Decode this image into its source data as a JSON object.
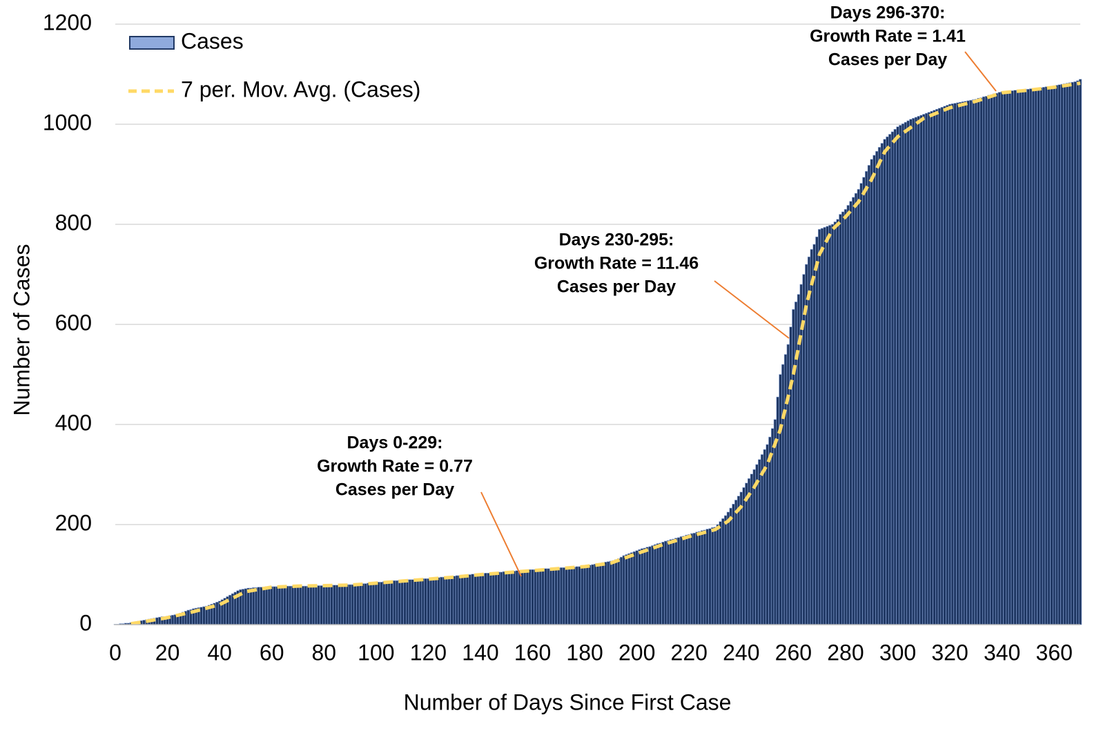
{
  "chart_data": {
    "type": "bar",
    "xlabel": "Number of Days Since First Case",
    "ylabel": "Number of Cases",
    "xlim": [
      0,
      370
    ],
    "xticks": [
      0,
      20,
      40,
      60,
      80,
      100,
      120,
      140,
      160,
      180,
      200,
      220,
      240,
      260,
      280,
      300,
      320,
      340,
      360
    ],
    "ylim": [
      0,
      1200
    ],
    "yticks": [
      0,
      200,
      400,
      600,
      800,
      1000,
      1200
    ],
    "grid": true,
    "legend": "upper left",
    "series": [
      {
        "name": "Cases",
        "type": "bar",
        "color": "#203864",
        "edgecolor": "#8faadc",
        "values": [
          1,
          1,
          2,
          2,
          3,
          3,
          4,
          5,
          6,
          7,
          8,
          9,
          10,
          11,
          12,
          13,
          14,
          15,
          16,
          16,
          17,
          18,
          19,
          20,
          21,
          23,
          25,
          27,
          29,
          30,
          32,
          33,
          34,
          35,
          36,
          37,
          39,
          41,
          43,
          45,
          47,
          50,
          53,
          56,
          59,
          62,
          65,
          68,
          70,
          71,
          72,
          73,
          73,
          74,
          74,
          75,
          75,
          75,
          76,
          76,
          76,
          76,
          76,
          76,
          76,
          77,
          77,
          77,
          77,
          77,
          77,
          77,
          77,
          77,
          77,
          78,
          78,
          78,
          78,
          78,
          78,
          78,
          78,
          79,
          79,
          79,
          79,
          79,
          80,
          80,
          80,
          80,
          81,
          81,
          81,
          82,
          82,
          83,
          83,
          84,
          84,
          85,
          85,
          86,
          86,
          87,
          87,
          88,
          88,
          89,
          89,
          89,
          90,
          90,
          90,
          91,
          91,
          91,
          92,
          92,
          92,
          93,
          93,
          94,
          94,
          95,
          95,
          96,
          96,
          97,
          97,
          98,
          98,
          99,
          99,
          100,
          100,
          101,
          101,
          102,
          102,
          102,
          103,
          103,
          104,
          104,
          104,
          105,
          105,
          106,
          106,
          106,
          107,
          107,
          108,
          108,
          108,
          109,
          109,
          110,
          110,
          110,
          111,
          111,
          111,
          112,
          112,
          112,
          113,
          113,
          113,
          114,
          114,
          114,
          115,
          115,
          115,
          116,
          116,
          117,
          117,
          118,
          119,
          120,
          121,
          122,
          123,
          124,
          125,
          126,
          127,
          128,
          130,
          132,
          135,
          138,
          140,
          142,
          144,
          146,
          148,
          150,
          152,
          153,
          155,
          156,
          158,
          160,
          162,
          163,
          165,
          167,
          168,
          170,
          171,
          173,
          174,
          176,
          177,
          179,
          180,
          182,
          183,
          185,
          186,
          188,
          189,
          191,
          192,
          194,
          195,
          200,
          206,
          212,
          218,
          225,
          233,
          241,
          249,
          257,
          265,
          274,
          283,
          292,
          301,
          310,
          320,
          330,
          340,
          350,
          360,
          375,
          392,
          410,
          455,
          500,
          520,
          540,
          560,
          595,
          630,
          645,
          660,
          680,
          700,
          720,
          735,
          750,
          760,
          775,
          790,
          792,
          794,
          796,
          798,
          800,
          805,
          810,
          820,
          825,
          830,
          838,
          846,
          854,
          862,
          870,
          882,
          894,
          906,
          918,
          930,
          938,
          946,
          954,
          962,
          970,
          975,
          980,
          985,
          990,
          995,
          998,
          1001,
          1004,
          1007,
          1010,
          1012,
          1014,
          1016,
          1018,
          1020,
          1022,
          1024,
          1026,
          1028,
          1030,
          1032,
          1034,
          1036,
          1038,
          1040,
          1041,
          1042,
          1043,
          1044,
          1045,
          1046,
          1047,
          1048,
          1049,
          1050,
          1052,
          1053,
          1055,
          1056,
          1058,
          1059,
          1061,
          1062,
          1064,
          1065,
          1066,
          1066,
          1067,
          1067,
          1068,
          1068,
          1069,
          1069,
          1070,
          1070,
          1071,
          1071,
          1072,
          1072,
          1073,
          1074,
          1075,
          1075,
          1076,
          1077,
          1078,
          1079,
          1080,
          1081,
          1082,
          1083,
          1084,
          1085,
          1087,
          1090
        ]
      },
      {
        "name": "7 per. Mov. Avg. (Cases)",
        "type": "line",
        "color": "#ffd966",
        "linestyle": "dashed",
        "x": [
          6,
          10,
          20,
          30,
          40,
          50,
          60,
          70,
          80,
          90,
          100,
          110,
          120,
          130,
          140,
          150,
          160,
          170,
          180,
          190,
          200,
          210,
          220,
          230,
          235,
          240,
          245,
          250,
          255,
          260,
          265,
          270,
          275,
          280,
          285,
          290,
          295,
          300,
          310,
          320,
          330,
          340,
          350,
          360,
          370
        ],
        "values": [
          2,
          5,
          14,
          26,
          40,
          66,
          75,
          77,
          78,
          79,
          83,
          87,
          91,
          95,
          100,
          104,
          108,
          112,
          116,
          123,
          142,
          160,
          176,
          190,
          207,
          236,
          275,
          320,
          390,
          500,
          640,
          740,
          790,
          815,
          845,
          890,
          945,
          975,
          1012,
          1033,
          1046,
          1063,
          1068,
          1074,
          1082
        ]
      }
    ],
    "annotations": [
      {
        "lines": [
          "Days 0-229:",
          "Growth Rate = 0.77",
          "Cases per Day"
        ],
        "color": "#ed7d31"
      },
      {
        "lines": [
          "Days 230-295:",
          "Growth Rate = 11.46",
          "Cases per Day"
        ],
        "color": "#ed7d31"
      },
      {
        "lines": [
          "Days 296-370:",
          "Growth Rate = 1.41",
          "Cases per Day"
        ],
        "color": "#ed7d31"
      }
    ]
  }
}
